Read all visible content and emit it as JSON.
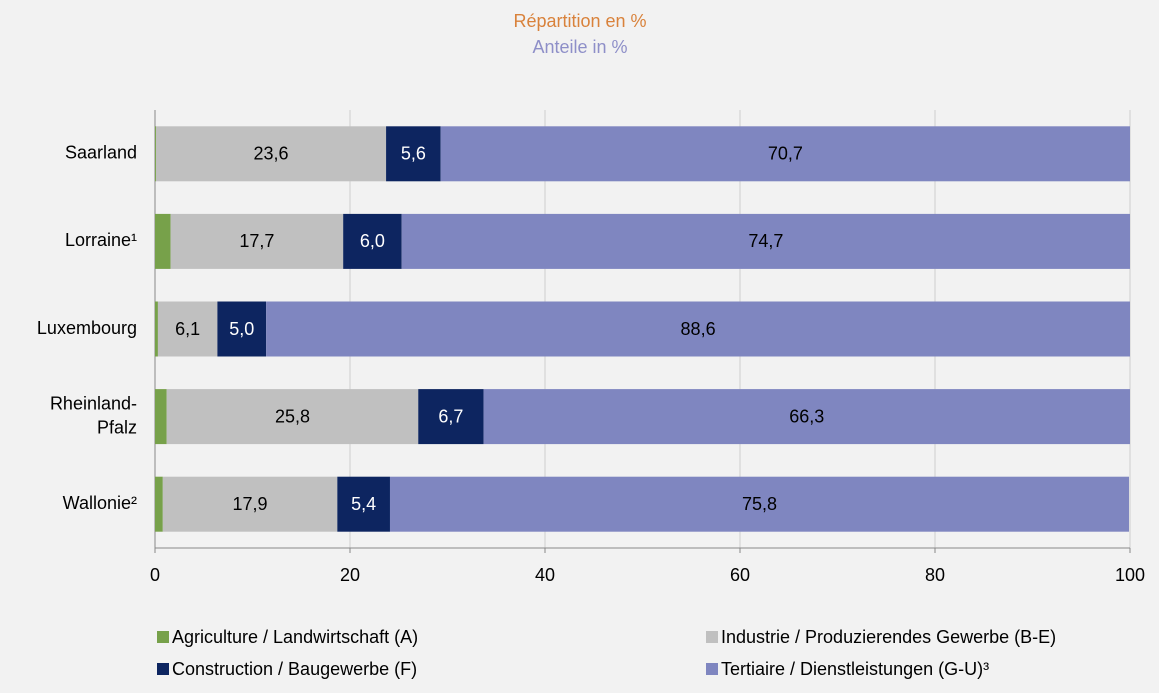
{
  "chart_data": {
    "type": "stacked_barh",
    "title": "Répartition en %",
    "title_color": "#d9823b",
    "subtitle": "Anteile in %",
    "subtitle_color": "#8e8fc8",
    "categories": [
      "Saarland",
      "Lorraine¹",
      "Luxembourg",
      "Rheinland-Pfalz",
      "Wallonie²"
    ],
    "series": [
      {
        "name": "Agriculture / Landwirtschaft (A)",
        "color": "#77a14a",
        "label_color": "#000000",
        "values": [
          0.1,
          1.6,
          0.3,
          1.2,
          0.8
        ],
        "value_labels": [
          null,
          "1,6",
          null,
          "1,2",
          "0,8"
        ]
      },
      {
        "name": "Industrie / Produzierendes Gewerbe (B-E)",
        "color": "#c0c0c0",
        "label_color": "#000000",
        "values": [
          23.6,
          17.7,
          6.1,
          25.8,
          17.9
        ],
        "value_labels": [
          "23,6",
          "17,7",
          "6,1",
          "25,8",
          "17,9"
        ]
      },
      {
        "name": "Construction / Baugewerbe (F)",
        "color": "#0d2560",
        "label_color": "#ffffff",
        "values": [
          5.6,
          6.0,
          5.0,
          6.7,
          5.4
        ],
        "value_labels": [
          "5,6",
          "6,0",
          "5,0",
          "6,7",
          "5,4"
        ]
      },
      {
        "name": "Tertiaire / Dienstleistungen (G-U)³",
        "color": "#7f86c0",
        "label_color": "#000000",
        "values": [
          70.7,
          74.7,
          88.6,
          66.3,
          75.8
        ],
        "value_labels": [
          "70,7",
          "74,7",
          "88,6",
          "66,3",
          "75,8"
        ]
      }
    ],
    "xlim": [
      0,
      100
    ],
    "xticks": [
      0,
      20,
      40,
      60,
      80,
      100
    ],
    "grid": true
  }
}
